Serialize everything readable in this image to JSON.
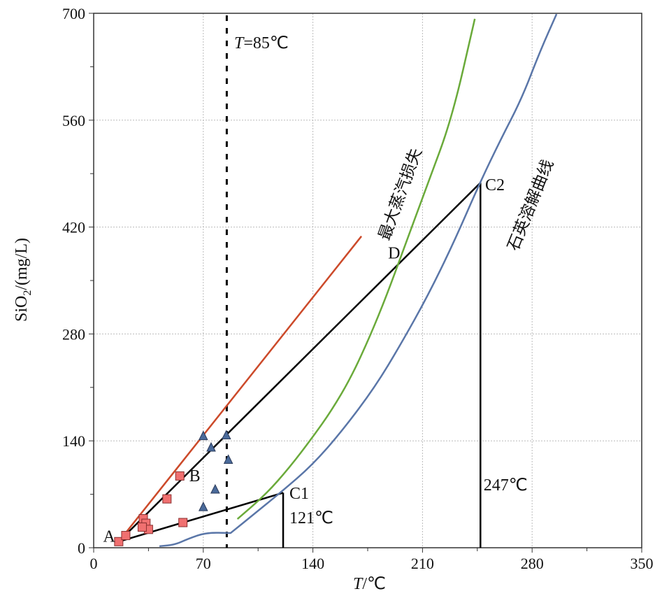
{
  "chart_data": {
    "type": "scatter",
    "xlabel_italic": "T",
    "xlabel_unit": "/℃",
    "ylabel": "SiO",
    "ylabel_sub": "2",
    "ylabel_unit": "/(mg/L)",
    "xlim": [
      0,
      350
    ],
    "ylim": [
      0,
      700
    ],
    "xticks": [
      0,
      70,
      140,
      210,
      280,
      350
    ],
    "yticks": [
      0,
      140,
      280,
      420,
      560,
      700
    ],
    "grid": true,
    "vline": {
      "x": 85,
      "label_italic": "T",
      "label_rest": "=85℃"
    },
    "series": [
      {
        "name": "squares",
        "kind": "square",
        "color": "#f07070",
        "points": [
          [
            16,
            8
          ],
          [
            20.5,
            16
          ],
          [
            31.7,
            38
          ],
          [
            33.4,
            32
          ],
          [
            35,
            24
          ],
          [
            31,
            27
          ],
          [
            46.8,
            64
          ],
          [
            55,
            94
          ],
          [
            57,
            33
          ]
        ]
      },
      {
        "name": "triangles",
        "kind": "triangle",
        "color": "#4a6a9a",
        "points": [
          [
            70,
            146
          ],
          [
            75,
            131
          ],
          [
            84.7,
            147
          ],
          [
            86,
            115
          ],
          [
            77.6,
            76
          ],
          [
            70,
            53
          ]
        ]
      }
    ],
    "lines": [
      {
        "name": "red-line",
        "color": "#cc4a2a",
        "points": [
          [
            16,
            8
          ],
          [
            171,
            408
          ]
        ]
      },
      {
        "name": "A-C2-line",
        "color": "#000000",
        "points": [
          [
            16,
            8
          ],
          [
            247,
            478
          ]
        ]
      },
      {
        "name": "A-C1-line",
        "color": "#000000",
        "points": [
          [
            16,
            8
          ],
          [
            121,
            72
          ]
        ]
      },
      {
        "name": "C1-drop-line",
        "color": "#000000",
        "points": [
          [
            121,
            72
          ],
          [
            121,
            0
          ]
        ]
      },
      {
        "name": "C2-drop-line",
        "color": "#000000",
        "points": [
          [
            247,
            478
          ],
          [
            247,
            0
          ]
        ]
      }
    ],
    "curves": [
      {
        "name": "max-steam-loss-curve",
        "label": "最大蒸汽损失",
        "color": "#6aaa3a",
        "points": [
          [
            91.8,
            37.6
          ],
          [
            110,
            70
          ],
          [
            125,
            105
          ],
          [
            139.5,
            143.8
          ],
          [
            152,
            180
          ],
          [
            164.5,
            223.6
          ],
          [
            176.6,
            277.6
          ],
          [
            187,
            330
          ],
          [
            197.5,
            388.5
          ],
          [
            213,
            475
          ],
          [
            228.7,
            561.7
          ],
          [
            243.4,
            692.7
          ]
        ]
      },
      {
        "name": "quartz-solubility-curve",
        "label": "石英溶解曲线",
        "color": "#5a76a8",
        "points": [
          [
            42,
            2
          ],
          [
            52,
            4
          ],
          [
            60.6,
            12
          ],
          [
            72,
            20
          ],
          [
            87.4,
            19.2
          ],
          [
            87.4,
            19.2
          ],
          [
            103,
            45
          ],
          [
            119.9,
            73.3
          ],
          [
            139.5,
            108
          ],
          [
            158.7,
            153
          ],
          [
            179.7,
            210.7
          ],
          [
            196,
            266
          ],
          [
            213.6,
            330.8
          ],
          [
            230,
            400
          ],
          [
            246.5,
            477.4
          ],
          [
            260,
            535
          ],
          [
            273.3,
            588
          ],
          [
            285,
            650
          ],
          [
            295.6,
            699
          ]
        ]
      }
    ],
    "annotations": [
      {
        "text": "A",
        "x": 6,
        "y": 8
      },
      {
        "text": "B",
        "x": 61,
        "y": 87
      },
      {
        "text": "C1",
        "x": 125,
        "y": 64
      },
      {
        "text": "121℃",
        "x": 125,
        "y": 32
      },
      {
        "text": "C2",
        "x": 250,
        "y": 468
      },
      {
        "text": "D",
        "x": 188,
        "y": 379
      },
      {
        "text": "247℃",
        "x": 249,
        "y": 75
      }
    ]
  }
}
